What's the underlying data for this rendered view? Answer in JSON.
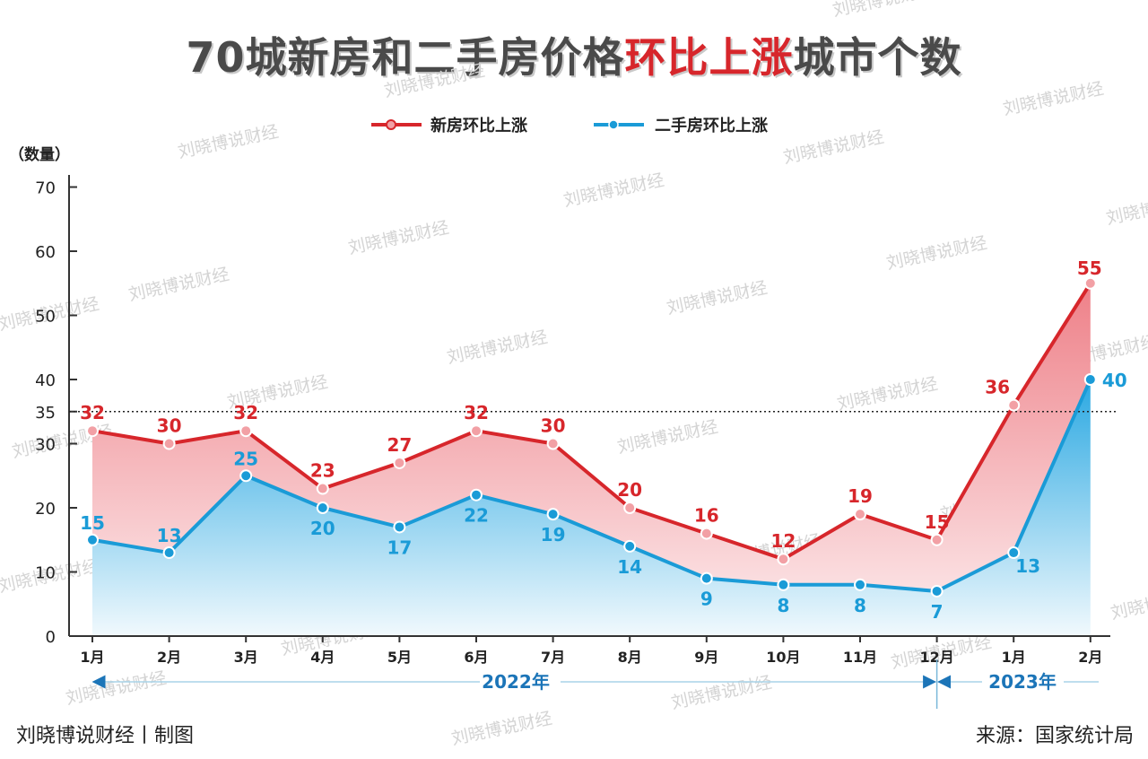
{
  "title": {
    "part1": "70城新房和二手房价格",
    "highlight": "环比上涨",
    "part2": "城市个数"
  },
  "watermark": "刘晓博说财经",
  "footer": {
    "left": "刘晓博说财经丨制图",
    "right": "来源：国家统计局"
  },
  "colors": {
    "new_home": "#d7262b",
    "second_hand": "#1a9bd7",
    "text_dark": "#222222",
    "year_label": "#1c75b8"
  },
  "chart_data": {
    "type": "area",
    "ylabel": "（数量）",
    "ylim": [
      0,
      70
    ],
    "yticks": [
      0,
      10,
      20,
      30,
      35,
      40,
      50,
      60,
      70
    ],
    "reference_line": 35,
    "categories": [
      "1月",
      "2月",
      "3月",
      "4月",
      "5月",
      "6月",
      "7月",
      "8月",
      "9月",
      "10月",
      "11月",
      "12月",
      "1月",
      "2月"
    ],
    "periods": [
      {
        "label": "2022年",
        "from_index": 0,
        "to_index": 11
      },
      {
        "label": "2023年",
        "from_index": 11,
        "to_index": 13
      }
    ],
    "series": [
      {
        "name": "新房环比上涨",
        "color": "#d7262b",
        "values": [
          32,
          30,
          32,
          23,
          27,
          32,
          30,
          20,
          16,
          12,
          19,
          15,
          36,
          55
        ]
      },
      {
        "name": "二手房环比上涨",
        "color": "#1a9bd7",
        "values": [
          15,
          13,
          25,
          20,
          17,
          22,
          19,
          14,
          9,
          8,
          8,
          7,
          13,
          40
        ]
      }
    ],
    "legend_position": "top-center",
    "grid": false
  }
}
